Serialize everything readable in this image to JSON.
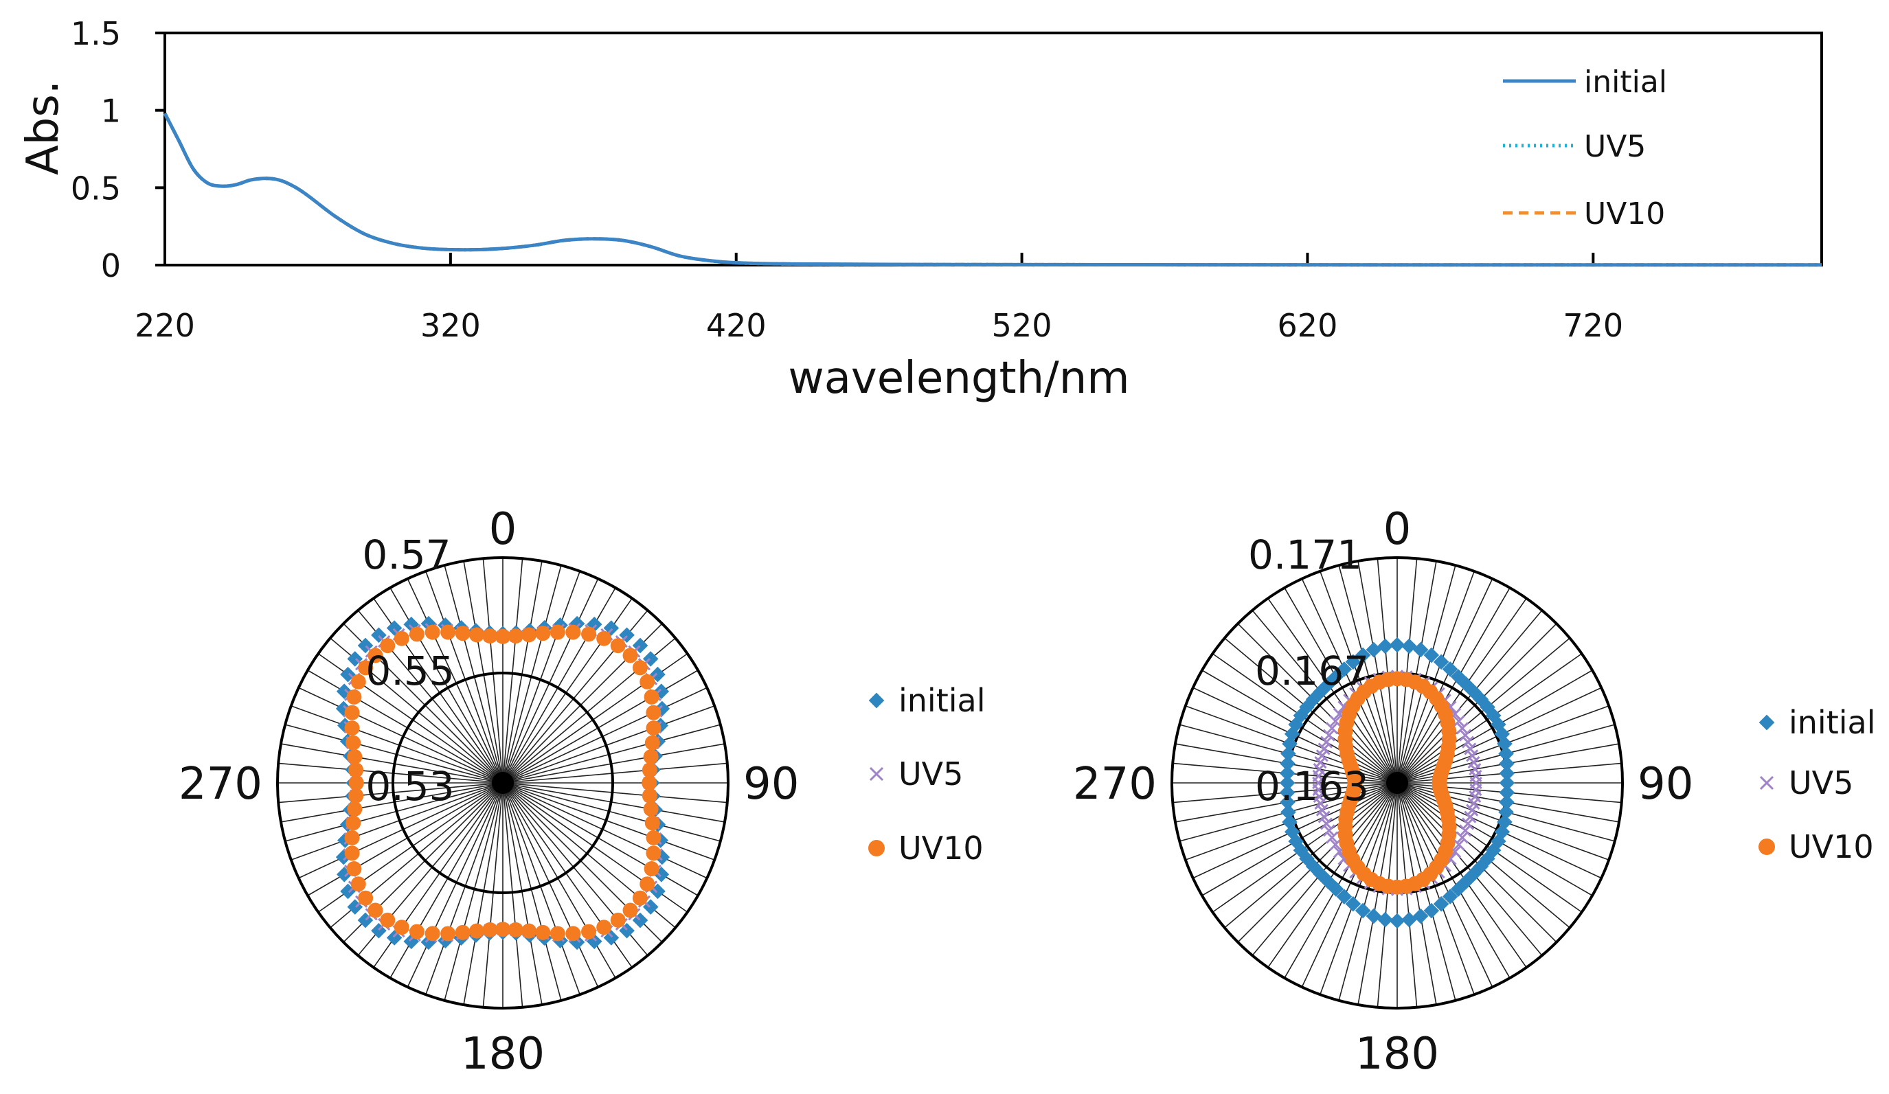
{
  "chart_data": [
    {
      "type": "line",
      "title": "",
      "xlabel": "wavelength/nm",
      "ylabel": "Abs.",
      "xlim": [
        220,
        800
      ],
      "ylim": [
        0,
        1.5
      ],
      "xticks": [
        "220",
        "320",
        "420",
        "520",
        "620",
        "720"
      ],
      "yticks": [
        "0",
        "0.5",
        "1",
        "1.5"
      ],
      "legend_position": "top-right",
      "colors": {
        "initial": "#3b84c6",
        "UV5": "#1bb3d9",
        "UV10": "#f28e2b"
      },
      "series": [
        {
          "name": "initial",
          "style": "solid",
          "x": [
            220,
            225,
            230,
            235,
            240,
            245,
            250,
            255,
            260,
            265,
            270,
            280,
            290,
            300,
            310,
            320,
            330,
            340,
            350,
            360,
            370,
            380,
            390,
            400,
            410,
            420,
            440,
            480,
            560,
            660,
            800
          ],
          "y": [
            0.98,
            0.8,
            0.62,
            0.53,
            0.51,
            0.52,
            0.55,
            0.56,
            0.55,
            0.51,
            0.45,
            0.31,
            0.2,
            0.14,
            0.11,
            0.1,
            0.1,
            0.11,
            0.13,
            0.16,
            0.17,
            0.16,
            0.12,
            0.06,
            0.03,
            0.015,
            0.007,
            0.004,
            0.002,
            0.001,
            0.001
          ]
        },
        {
          "name": "UV5",
          "style": "dotted",
          "x": [
            220,
            225,
            230,
            235,
            240,
            245,
            250,
            255,
            260,
            265,
            270,
            280,
            290,
            300,
            310,
            320,
            330,
            340,
            350,
            360,
            370,
            380,
            390,
            400,
            410,
            420,
            440,
            480,
            560,
            660,
            800
          ],
          "y": [
            0.98,
            0.8,
            0.62,
            0.53,
            0.51,
            0.52,
            0.55,
            0.56,
            0.55,
            0.51,
            0.45,
            0.31,
            0.2,
            0.14,
            0.11,
            0.1,
            0.1,
            0.11,
            0.13,
            0.16,
            0.17,
            0.16,
            0.12,
            0.06,
            0.03,
            0.015,
            0.007,
            0.004,
            0.002,
            0.001,
            0.001
          ]
        },
        {
          "name": "UV10",
          "style": "dashed",
          "x": [
            220,
            225,
            230,
            235,
            240,
            245,
            250,
            255,
            260,
            265,
            270,
            280,
            290,
            300,
            310,
            320,
            330,
            340,
            350,
            360,
            370,
            380,
            390,
            400,
            410,
            420,
            440,
            480,
            560,
            660,
            800
          ],
          "y": [
            0.98,
            0.8,
            0.62,
            0.53,
            0.51,
            0.52,
            0.55,
            0.56,
            0.55,
            0.51,
            0.45,
            0.31,
            0.2,
            0.14,
            0.11,
            0.1,
            0.1,
            0.11,
            0.13,
            0.16,
            0.17,
            0.16,
            0.12,
            0.06,
            0.03,
            0.015,
            0.007,
            0.004,
            0.002,
            0.001,
            0.001
          ]
        }
      ]
    },
    {
      "type": "scatter",
      "subtype": "polar",
      "title": "",
      "angle_labels": [
        "0",
        "90",
        "180",
        "270"
      ],
      "angle_step_deg": 5,
      "rlim": [
        0.53,
        0.57
      ],
      "rticks": [
        "0.53",
        "0.55",
        "0.57"
      ],
      "legend_position": "right",
      "colors": {
        "initial": "#2e86c1",
        "UV5": "#a084c9",
        "UV10": "#f47b20"
      },
      "series": [
        {
          "name": "initial",
          "marker": "diamond",
          "base": 0.5605,
          "amp2": 0.0,
          "amp4": -0.004,
          "amp6": 0.0
        },
        {
          "name": "UV5",
          "marker": "x",
          "base": 0.5595,
          "amp2": 0.0,
          "amp4": -0.0035,
          "amp6": 0.0
        },
        {
          "name": "UV10",
          "marker": "circle",
          "base": 0.559,
          "amp2": 0.0,
          "amp4": -0.003,
          "amp6": 0.0
        }
      ]
    },
    {
      "type": "scatter",
      "subtype": "polar",
      "title": "",
      "angle_labels": [
        "0",
        "90",
        "180",
        "270"
      ],
      "angle_step_deg": 5,
      "rlim": [
        0.163,
        0.171
      ],
      "rticks": [
        "0.163",
        "0.167",
        "0.171"
      ],
      "legend_position": "right",
      "colors": {
        "initial": "#2e86c1",
        "UV5": "#a084c9",
        "UV10": "#f47b20"
      },
      "series": [
        {
          "name": "initial",
          "marker": "diamond",
          "base": 0.1673,
          "amp2": 0.0004,
          "amp4": 0.0001,
          "amp6": 0.0001
        },
        {
          "name": "UV5",
          "marker": "x",
          "base": 0.1662,
          "amp2": 0.0005,
          "amp4": 0.0001,
          "amp6": 0.0
        },
        {
          "name": "UV10",
          "marker": "circle",
          "base": 0.1656,
          "amp2": 0.0011,
          "amp4": 0.0,
          "amp6": 0.0
        }
      ]
    }
  ]
}
